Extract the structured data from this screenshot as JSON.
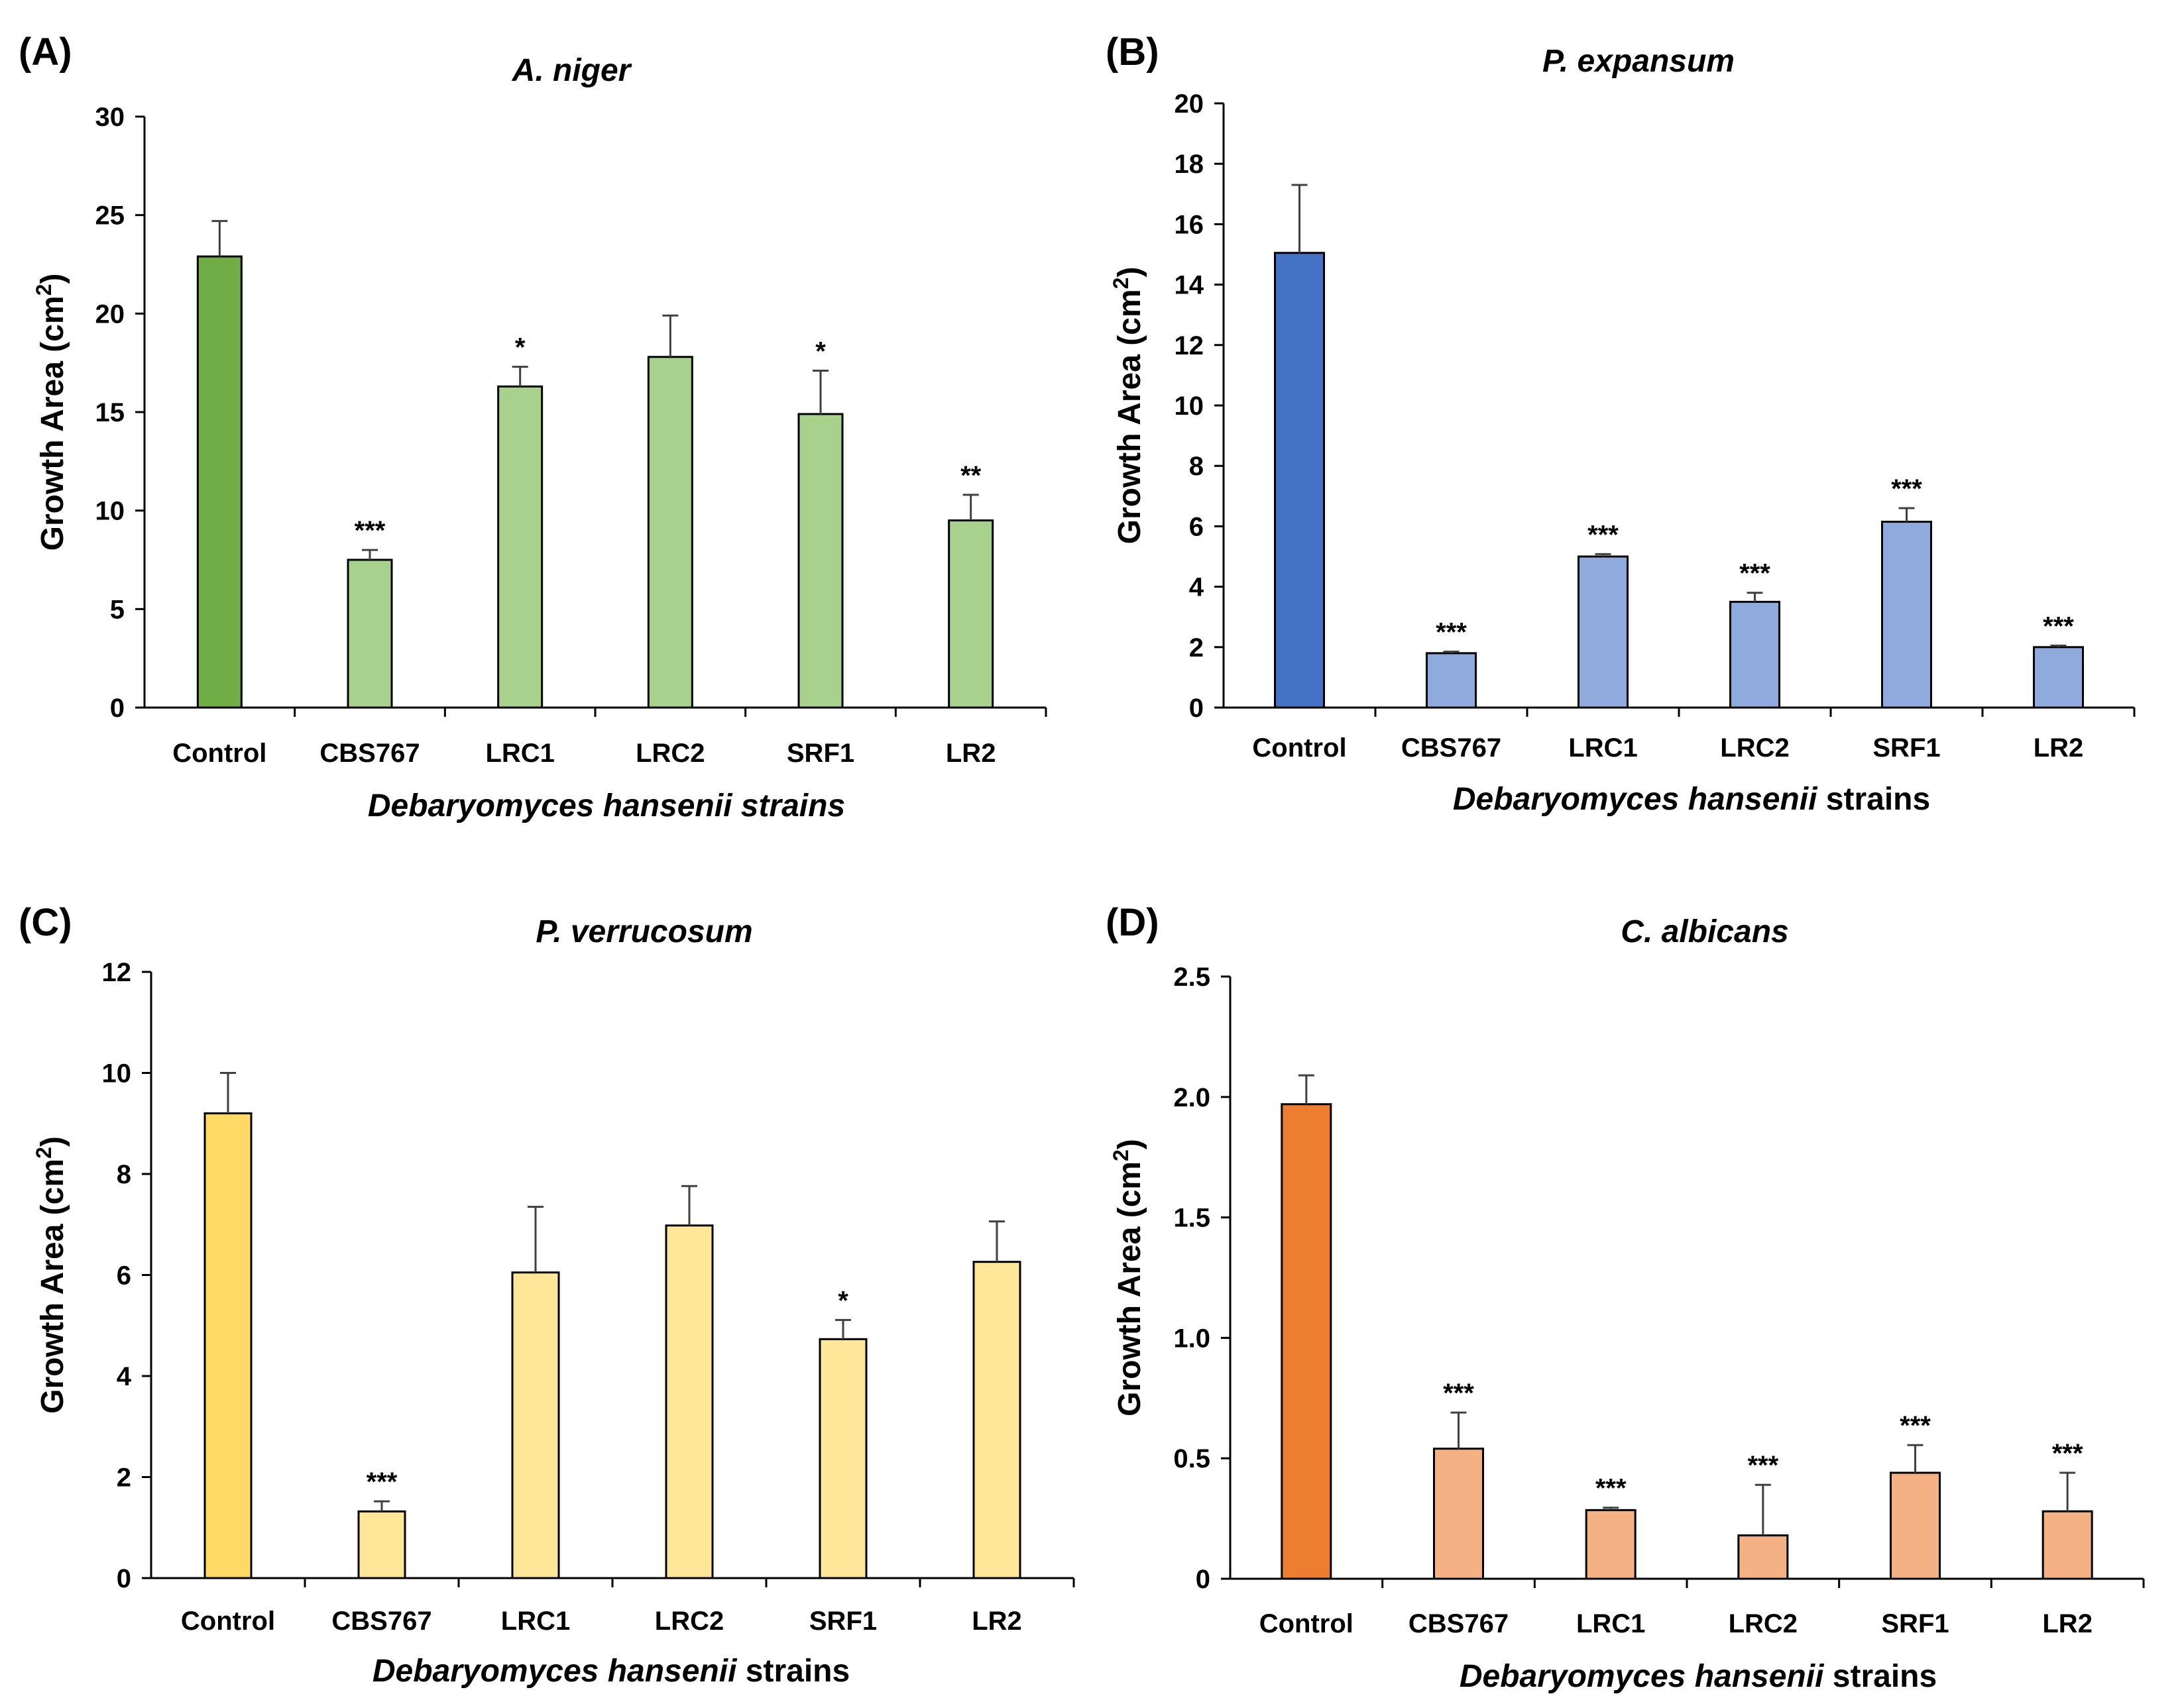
{
  "chart_data": [
    {
      "type": "bar",
      "panel_label": "(A)",
      "title": "A. niger",
      "ylabel": "Growth Area (cm²)",
      "ylabel_main": "Growth Area (cm",
      "ylabel_sup": "2",
      "ylabel_end": ")",
      "xlabel_italic": "Debaryomyces hansenii strains",
      "xlabel_rest": "",
      "categories": [
        "Control",
        "CBS767",
        "LRC1",
        "LRC2",
        "SRF1",
        "LR2"
      ],
      "values": [
        22.9,
        7.5,
        16.3,
        17.8,
        14.9,
        9.5
      ],
      "errors": [
        1.8,
        0.5,
        1.0,
        2.1,
        2.2,
        1.3
      ],
      "significance": [
        "",
        "***",
        "*",
        "",
        "*",
        "**"
      ],
      "ylim": [
        0,
        30
      ],
      "yticks": [
        0,
        5,
        10,
        15,
        20,
        25,
        30
      ],
      "ytick_labels": [
        "0",
        "5",
        "10",
        "15",
        "20",
        "25",
        "30"
      ],
      "control_color": "#70AD47",
      "bar_color": "#A9D18E"
    },
    {
      "type": "bar",
      "panel_label": "(B)",
      "title": "P. expansum",
      "ylabel": "Growth Area (cm²)",
      "ylabel_main": "Growth Area (cm",
      "ylabel_sup": "2",
      "ylabel_end": ")",
      "xlabel_italic": "Debaryomyces hansenii",
      "xlabel_rest": " strains",
      "categories": [
        "Control",
        "CBS767",
        "LRC1",
        "LRC2",
        "SRF1",
        "LR2"
      ],
      "values": [
        15.05,
        1.8,
        5.0,
        3.5,
        6.15,
        2.0
      ],
      "errors": [
        2.25,
        0.05,
        0.08,
        0.3,
        0.45,
        0.05
      ],
      "significance": [
        "",
        "***",
        "***",
        "***",
        "***",
        "***"
      ],
      "ylim": [
        0,
        20
      ],
      "yticks": [
        0,
        2,
        4,
        6,
        8,
        10,
        12,
        14,
        16,
        18,
        20
      ],
      "ytick_labels": [
        "0",
        "2",
        "4",
        "6",
        "8",
        "10",
        "12",
        "14",
        "16",
        "18",
        "20"
      ],
      "control_color": "#4472C4",
      "bar_color": "#8FAADC"
    },
    {
      "type": "bar",
      "panel_label": "(C)",
      "title": "P. verrucosum",
      "ylabel": "Growth Area (cm²)",
      "ylabel_main": "Growth Area (cm",
      "ylabel_sup": "2",
      "ylabel_end": ")",
      "xlabel_italic": "Debaryomyces hansenii",
      "xlabel_rest": " strains",
      "categories": [
        "Control",
        "CBS767",
        "LRC1",
        "LRC2",
        "SRF1",
        "LR2"
      ],
      "values": [
        9.2,
        1.32,
        6.05,
        6.98,
        4.73,
        6.26
      ],
      "errors": [
        0.8,
        0.2,
        1.3,
        0.78,
        0.38,
        0.8
      ],
      "significance": [
        "",
        "***",
        "",
        "",
        "*",
        ""
      ],
      "ylim": [
        0,
        12
      ],
      "yticks": [
        0,
        2,
        4,
        6,
        8,
        10,
        12
      ],
      "ytick_labels": [
        "0",
        "2",
        "4",
        "6",
        "8",
        "10",
        "12"
      ],
      "control_color": "#FFD966",
      "bar_color": "#FFE699"
    },
    {
      "type": "bar",
      "panel_label": "(D)",
      "title": "C. albicans",
      "ylabel": "Growth Area (cm²)",
      "ylabel_main": "Growth Area (cm",
      "ylabel_sup": "2",
      "ylabel_end": ")",
      "xlabel_italic": "Debaryomyces hansenii",
      "xlabel_rest": " strains",
      "categories": [
        "Control",
        "CBS767",
        "LRC1",
        "LRC2",
        "SRF1",
        "LR2"
      ],
      "values": [
        1.97,
        0.54,
        0.285,
        0.18,
        0.44,
        0.28
      ],
      "errors": [
        0.12,
        0.15,
        0.01,
        0.21,
        0.115,
        0.16
      ],
      "significance": [
        "",
        "***",
        "***",
        "***",
        "***",
        "***"
      ],
      "ylim": [
        0,
        2.5
      ],
      "yticks": [
        0,
        0.5,
        1.0,
        1.5,
        2.0,
        2.5
      ],
      "ytick_labels": [
        "0",
        "0.5",
        "1.0",
        "1.5",
        "2.0",
        "2.5"
      ],
      "control_color": "#ED7D31",
      "bar_color": "#F4B183"
    }
  ]
}
